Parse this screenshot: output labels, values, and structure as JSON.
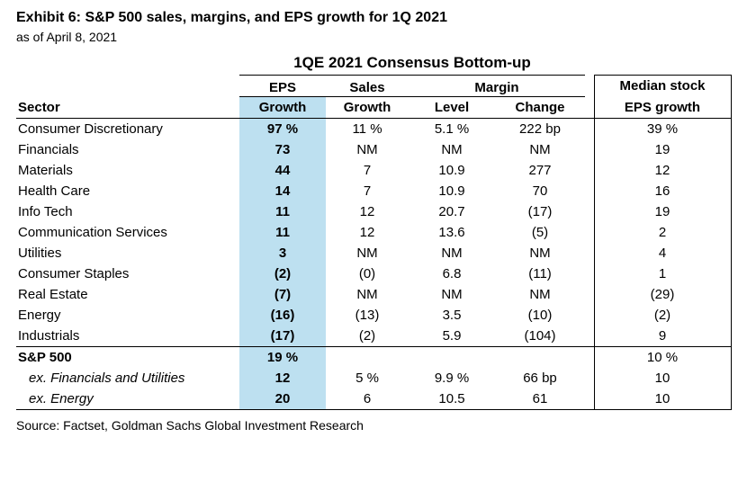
{
  "exhibit": {
    "title": "Exhibit 6: S&P 500 sales, margins, and EPS growth for 1Q 2021",
    "subtitle": "as of April 8, 2021",
    "source": "Source: Factset, Goldman Sachs Global Investment Research"
  },
  "table": {
    "title": "1QE 2021 Consensus Bottom-up",
    "highlight_color": "#BDE0F0",
    "group_headers": {
      "eps": "EPS",
      "sales": "Sales",
      "margin": "Margin",
      "median": "Median stock"
    },
    "column_headers": {
      "sector": "Sector",
      "eps_growth": "Growth",
      "sales_growth": "Growth",
      "margin_level": "Level",
      "margin_change": "Change",
      "median_eps_growth": "EPS growth"
    },
    "rows": [
      {
        "sector": "Consumer Discretionary",
        "eps": "97 %",
        "sales": "11 %",
        "level": "5.1 %",
        "change": "222 bp",
        "median": "39 %"
      },
      {
        "sector": "Financials",
        "eps": "73",
        "sales": "NM",
        "level": "NM",
        "change": "NM",
        "median": "19"
      },
      {
        "sector": "Materials",
        "eps": "44",
        "sales": "7",
        "level": "10.9",
        "change": "277",
        "median": "12"
      },
      {
        "sector": "Health Care",
        "eps": "14",
        "sales": "7",
        "level": "10.9",
        "change": "70",
        "median": "16"
      },
      {
        "sector": "Info Tech",
        "eps": "11",
        "sales": "12",
        "level": "20.7",
        "change": "(17)",
        "median": "19"
      },
      {
        "sector": "Communication Services",
        "eps": "11",
        "sales": "12",
        "level": "13.6",
        "change": "(5)",
        "median": "2"
      },
      {
        "sector": "Utilities",
        "eps": "3",
        "sales": "NM",
        "level": "NM",
        "change": "NM",
        "median": "4"
      },
      {
        "sector": "Consumer Staples",
        "eps": "(2)",
        "sales": "(0)",
        "level": "6.8",
        "change": "(11)",
        "median": "1"
      },
      {
        "sector": "Real Estate",
        "eps": "(7)",
        "sales": "NM",
        "level": "NM",
        "change": "NM",
        "median": "(29)"
      },
      {
        "sector": "Energy",
        "eps": "(16)",
        "sales": "(13)",
        "level": "3.5",
        "change": "(10)",
        "median": "(2)"
      },
      {
        "sector": "Industrials",
        "eps": "(17)",
        "sales": "(2)",
        "level": "5.9",
        "change": "(104)",
        "median": "9"
      }
    ],
    "summary_rows": [
      {
        "sector": "S&P 500",
        "eps": "19 %",
        "sales": "",
        "level": "",
        "change": "",
        "median": "10 %",
        "style": "bold"
      },
      {
        "sector": "ex. Financials and Utilities",
        "eps": "12",
        "sales": "5 %",
        "level": "9.9 %",
        "change": "66 bp",
        "median": "10",
        "style": "italic"
      },
      {
        "sector": "ex. Energy",
        "eps": "20",
        "sales": "6",
        "level": "10.5",
        "change": "61",
        "median": "10",
        "style": "italic"
      }
    ]
  },
  "chart_data": {
    "type": "table",
    "title": "1QE 2021 Consensus Bottom-up",
    "columns": [
      "Sector",
      "EPS Growth",
      "Sales Growth",
      "Margin Level",
      "Margin Change",
      "Median stock EPS growth"
    ],
    "rows": [
      [
        "Consumer Discretionary",
        "97 %",
        "11 %",
        "5.1 %",
        "222 bp",
        "39 %"
      ],
      [
        "Financials",
        "73",
        "NM",
        "NM",
        "NM",
        "19"
      ],
      [
        "Materials",
        "44",
        "7",
        "10.9",
        "277",
        "12"
      ],
      [
        "Health Care",
        "14",
        "7",
        "10.9",
        "70",
        "16"
      ],
      [
        "Info Tech",
        "11",
        "12",
        "20.7",
        "(17)",
        "19"
      ],
      [
        "Communication Services",
        "11",
        "12",
        "13.6",
        "(5)",
        "2"
      ],
      [
        "Utilities",
        "3",
        "NM",
        "NM",
        "NM",
        "4"
      ],
      [
        "Consumer Staples",
        "(2)",
        "(0)",
        "6.8",
        "(11)",
        "1"
      ],
      [
        "Real Estate",
        "(7)",
        "NM",
        "NM",
        "NM",
        "(29)"
      ],
      [
        "Energy",
        "(16)",
        "(13)",
        "3.5",
        "(10)",
        "(2)"
      ],
      [
        "Industrials",
        "(17)",
        "(2)",
        "5.9",
        "(104)",
        "9"
      ],
      [
        "S&P 500",
        "19 %",
        "",
        "",
        "",
        "10 %"
      ],
      [
        "ex. Financials and Utilities",
        "12",
        "5 %",
        "9.9 %",
        "66 bp",
        "10"
      ],
      [
        "ex. Energy",
        "20",
        "6",
        "10.5",
        "61",
        "10"
      ]
    ]
  }
}
